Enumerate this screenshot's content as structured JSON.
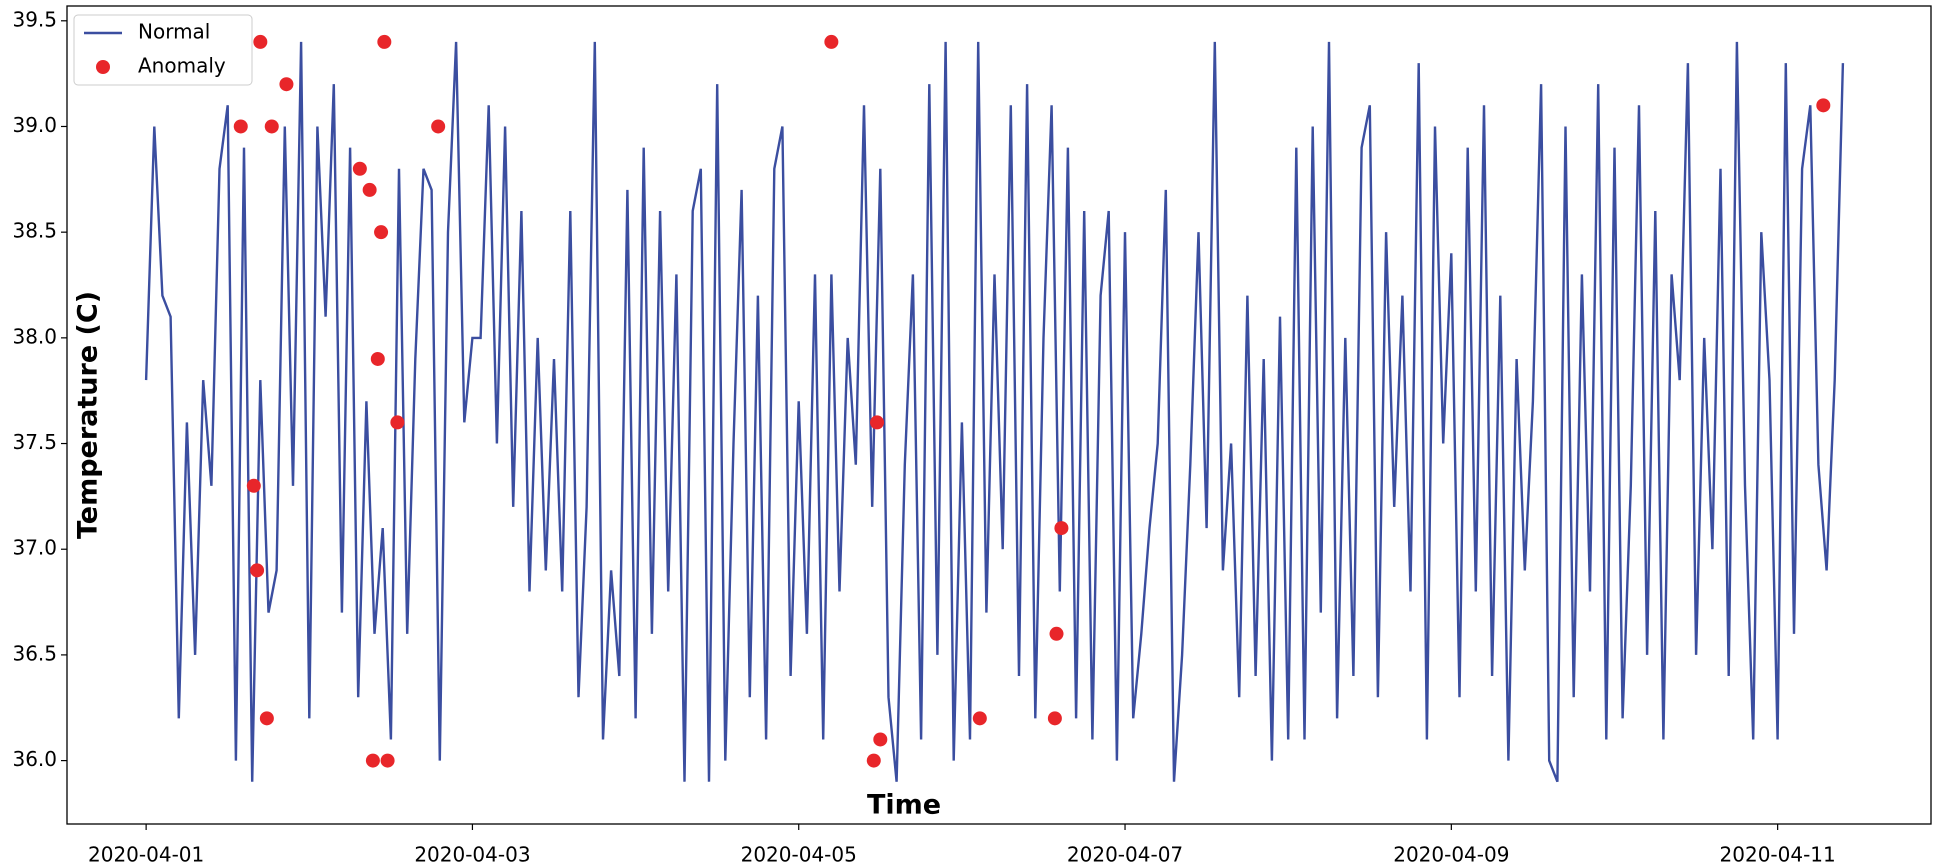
{
  "chart_data": {
    "type": "line",
    "xlabel": "Time",
    "ylabel": "Temperature (C)",
    "xlim": [
      -0.485,
      10.94
    ],
    "xticks": [
      {
        "value": 0,
        "label": "2020-04-01"
      },
      {
        "value": 2,
        "label": "2020-04-03"
      },
      {
        "value": 4,
        "label": "2020-04-05"
      },
      {
        "value": 6,
        "label": "2020-04-07"
      },
      {
        "value": 8,
        "label": "2020-04-09"
      },
      {
        "value": 10,
        "label": "2020-04-11"
      }
    ],
    "ylim": [
      35.7,
      39.57
    ],
    "yticks": [
      {
        "value": 36,
        "label": "36.0"
      },
      36.5,
      {
        "value": 37,
        "label": "37.0"
      },
      37.5,
      {
        "value": 38,
        "label": "38.0"
      },
      38.5,
      {
        "value": 39,
        "label": "39.0"
      },
      39.5
    ],
    "legend": "upper left",
    "series": [
      {
        "name": "Normal",
        "type": "line",
        "color": "#3b4ea0",
        "x": [
          0,
          0.05,
          0.1,
          0.15,
          0.2,
          0.25,
          0.3,
          0.35,
          0.4,
          0.45,
          0.5,
          0.55,
          0.6,
          0.65,
          0.7,
          0.75,
          0.8,
          0.85,
          0.9,
          0.95,
          1,
          1.05,
          1.1,
          1.15,
          1.2,
          1.25,
          1.3,
          1.35,
          1.4,
          1.45,
          1.5,
          1.55,
          1.6,
          1.65,
          1.7,
          1.75,
          1.8,
          1.85,
          1.9,
          1.95,
          2,
          2.05,
          2.1,
          2.15,
          2.2,
          2.25,
          2.3,
          2.35,
          2.4,
          2.45,
          2.5,
          2.55,
          2.6,
          2.65,
          2.7,
          2.75,
          2.8,
          2.85,
          2.9,
          2.95,
          3,
          3.05,
          3.1,
          3.15,
          3.2,
          3.25,
          3.3,
          3.35,
          3.4,
          3.45,
          3.5,
          3.55,
          3.6,
          3.65,
          3.7,
          3.75,
          3.8,
          3.85,
          3.9,
          3.95,
          4,
          4.05,
          4.1,
          4.15,
          4.2,
          4.25,
          4.3,
          4.35,
          4.4,
          4.45,
          4.5,
          4.55,
          4.6,
          4.65,
          4.7,
          4.75,
          4.8,
          4.85,
          4.9,
          4.95,
          5,
          5.05,
          5.1,
          5.15,
          5.2,
          5.25,
          5.3,
          5.35,
          5.4,
          5.45,
          5.5,
          5.55,
          5.6,
          5.65,
          5.7,
          5.75,
          5.8,
          5.85,
          5.9,
          5.95,
          6,
          6.05,
          6.1,
          6.15,
          6.2,
          6.25,
          6.3,
          6.35,
          6.4,
          6.45,
          6.5,
          6.55,
          6.6,
          6.65,
          6.7,
          6.75,
          6.8,
          6.85,
          6.9,
          6.95,
          7,
          7.05,
          7.1,
          7.15,
          7.2,
          7.25,
          7.3,
          7.35,
          7.4,
          7.45,
          7.5,
          7.55,
          7.6,
          7.65,
          7.7,
          7.75,
          7.8,
          7.85,
          7.9,
          7.95,
          8,
          8.05,
          8.1,
          8.15,
          8.2,
          8.25,
          8.3,
          8.35,
          8.4,
          8.45,
          8.5,
          8.55,
          8.6,
          8.65,
          8.7,
          8.75,
          8.8,
          8.85,
          8.9,
          8.95,
          9,
          9.05,
          9.1,
          9.15,
          9.2,
          9.25,
          9.3,
          9.35,
          9.4,
          9.45,
          9.5,
          9.55,
          9.6,
          9.65,
          9.7,
          9.75,
          9.8,
          9.85,
          9.9,
          9.95,
          10,
          10.05,
          10.1,
          10.15,
          10.2,
          10.25,
          10.3,
          10.35,
          10.4
        ],
        "values": [
          37.8,
          39.0,
          38.2,
          38.1,
          36.2,
          37.6,
          36.5,
          37.8,
          37.3,
          38.8,
          39.1,
          36.0,
          38.9,
          35.9,
          37.8,
          36.7,
          36.9,
          39.0,
          37.3,
          39.4,
          36.2,
          39.0,
          38.1,
          39.2,
          36.7,
          38.9,
          36.3,
          37.7,
          36.6,
          37.1,
          36.1,
          38.8,
          36.6,
          37.9,
          38.8,
          38.7,
          36.0,
          38.5,
          39.4,
          37.6,
          38.0,
          38.0,
          39.1,
          37.5,
          39.0,
          37.2,
          38.6,
          36.8,
          38.0,
          36.9,
          37.9,
          36.8,
          38.6,
          36.3,
          37.2,
          39.4,
          36.1,
          36.9,
          36.4,
          38.7,
          36.2,
          38.9,
          36.6,
          38.6,
          36.8,
          38.3,
          35.9,
          38.6,
          38.8,
          35.9,
          39.2,
          36.0,
          37.5,
          38.7,
          36.3,
          38.2,
          36.1,
          38.8,
          39.0,
          36.4,
          37.7,
          36.6,
          38.3,
          36.1,
          38.3,
          36.8,
          38.0,
          37.4,
          39.1,
          37.2,
          38.8,
          36.3,
          35.9,
          37.4,
          38.3,
          36.1,
          39.2,
          36.5,
          39.4,
          36.0,
          37.6,
          36.1,
          39.4,
          36.7,
          38.3,
          37.0,
          39.1,
          36.4,
          39.2,
          36.2,
          38.0,
          39.1,
          36.8,
          38.9,
          36.2,
          38.6,
          36.1,
          38.2,
          38.6,
          36.0,
          38.5,
          36.2,
          36.6,
          37.1,
          37.5,
          38.7,
          35.9,
          36.5,
          37.4,
          38.5,
          37.1,
          39.4,
          36.9,
          37.5,
          36.3,
          38.2,
          36.4,
          37.9,
          36.0,
          38.1,
          36.1,
          38.9,
          36.1,
          39.0,
          36.7,
          39.4,
          36.2,
          38.0,
          36.4,
          38.9,
          39.1,
          36.3,
          38.5,
          37.2,
          38.2,
          36.8,
          39.3,
          36.1,
          39.0,
          37.5,
          38.4,
          36.3,
          38.9,
          36.8,
          39.1,
          36.4,
          38.2,
          36.0,
          37.9,
          36.9,
          37.7,
          39.2,
          36.0,
          35.9,
          39.0,
          36.3,
          38.3,
          36.8,
          39.2,
          36.1,
          38.9,
          36.2,
          37.3,
          39.1,
          36.5,
          38.6,
          36.1,
          38.3,
          37.8,
          39.3,
          36.5,
          38.0,
          37.0,
          38.8,
          36.4,
          39.4,
          37.3,
          36.1,
          38.5,
          37.8,
          36.1,
          39.3,
          36.6,
          38.8,
          39.1,
          37.4,
          36.9,
          37.8,
          39.3
        ]
      },
      {
        "name": "Anomaly",
        "type": "scatter",
        "color": "#e8262a",
        "x": [
          0.58,
          0.66,
          0.68,
          0.7,
          0.74,
          0.77,
          0.86,
          1.31,
          1.37,
          1.39,
          1.42,
          1.44,
          1.46,
          1.48,
          1.54,
          1.79,
          4.2,
          4.46,
          4.48,
          4.5,
          5.11,
          5.57,
          5.58,
          5.61,
          10.28
        ],
        "values": [
          39.0,
          37.3,
          36.9,
          39.4,
          36.2,
          39.0,
          39.2,
          38.8,
          38.7,
          36.0,
          37.9,
          38.5,
          39.4,
          36.0,
          37.6,
          39.0,
          39.4,
          36.0,
          37.6,
          36.1,
          36.2,
          36.2,
          36.6,
          37.1,
          39.1
        ]
      }
    ]
  }
}
